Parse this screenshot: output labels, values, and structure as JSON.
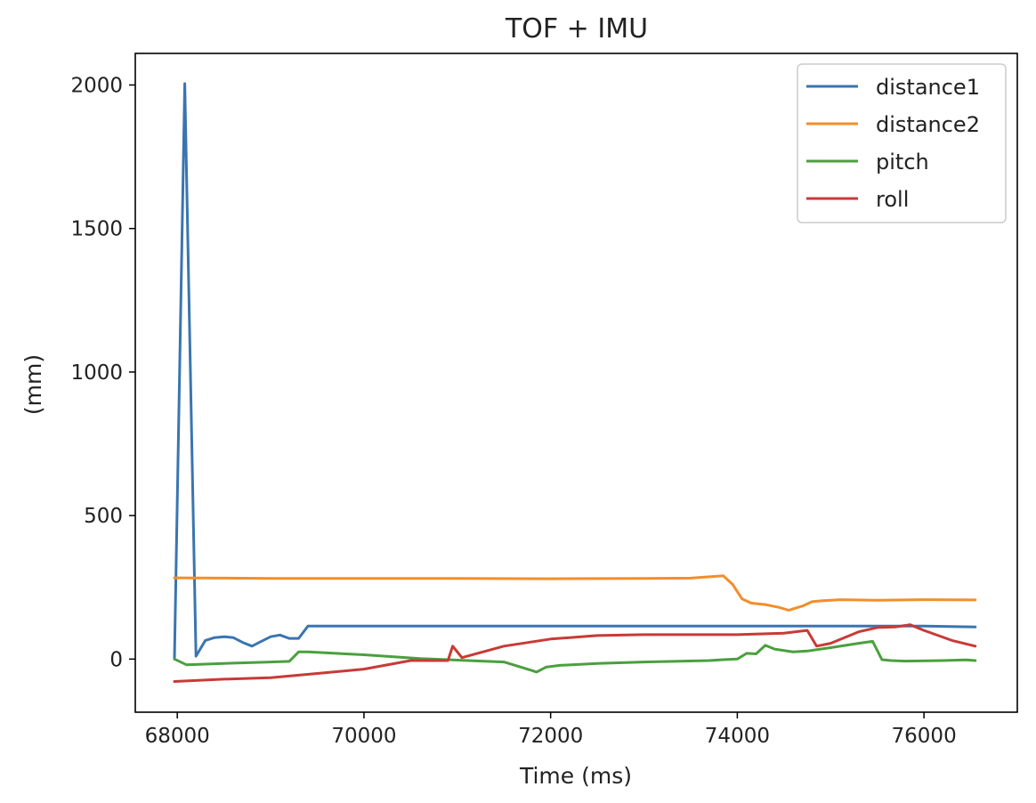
{
  "chart_data": {
    "type": "line",
    "title": "TOF + IMU",
    "xlabel": "Time (ms)",
    "ylabel": "(mm)",
    "xlim": [
      67550,
      77000
    ],
    "ylim": [
      -185,
      2110
    ],
    "xticks": [
      68000,
      70000,
      72000,
      74000,
      76000
    ],
    "yticks": [
      0,
      500,
      1000,
      1500,
      2000
    ],
    "legend_position": "top-right",
    "grid": false,
    "series": [
      {
        "name": "distance1",
        "color": "#3a75b0",
        "x": [
          67970,
          68080,
          68200,
          68300,
          68400,
          68500,
          68600,
          68700,
          68800,
          68900,
          69000,
          69100,
          69200,
          69300,
          69400,
          70000,
          71000,
          72000,
          73000,
          74000,
          75000,
          76000,
          76550
        ],
        "y": [
          0,
          2005,
          10,
          65,
          75,
          78,
          75,
          58,
          45,
          62,
          78,
          84,
          72,
          72,
          115,
          115,
          115,
          115,
          115,
          115,
          115,
          115,
          112
        ]
      },
      {
        "name": "distance2",
        "color": "#f28e2b",
        "x": [
          67970,
          68500,
          69000,
          70000,
          71000,
          72000,
          73000,
          73500,
          73850,
          73950,
          74050,
          74150,
          74300,
          74450,
          74550,
          74700,
          74800,
          74900,
          75100,
          75500,
          76000,
          76550
        ],
        "y": [
          283,
          282,
          281,
          281,
          281,
          280,
          281,
          282,
          290,
          260,
          210,
          195,
          190,
          180,
          170,
          185,
          200,
          203,
          207,
          205,
          207,
          206
        ]
      },
      {
        "name": "pitch",
        "color": "#4aa03e",
        "x": [
          67970,
          68100,
          68500,
          69000,
          69200,
          69300,
          69400,
          70000,
          70600,
          71500,
          71800,
          71850,
          71950,
          72100,
          72500,
          73000,
          73700,
          73850,
          74000,
          74100,
          74200,
          74300,
          74400,
          74600,
          74750,
          75000,
          75300,
          75450,
          75550,
          75650,
          75800,
          76200,
          76450,
          76550
        ],
        "y": [
          0,
          -20,
          -15,
          -10,
          -8,
          25,
          25,
          15,
          2,
          -10,
          -40,
          -45,
          -28,
          -22,
          -15,
          -10,
          -5,
          -2,
          0,
          20,
          18,
          48,
          35,
          25,
          28,
          40,
          55,
          62,
          -2,
          -5,
          -7,
          -5,
          -3,
          -5
        ]
      },
      {
        "name": "roll",
        "color": "#c83a36",
        "x": [
          67970,
          68500,
          69000,
          69500,
          70000,
          70500,
          70900,
          70950,
          71050,
          71500,
          72000,
          72500,
          73000,
          74000,
          74500,
          74750,
          74850,
          75000,
          75300,
          75500,
          75700,
          75850,
          76000,
          76300,
          76550
        ],
        "y": [
          -78,
          -70,
          -65,
          -50,
          -35,
          -5,
          -5,
          45,
          5,
          45,
          70,
          82,
          85,
          85,
          90,
          100,
          45,
          55,
          95,
          110,
          112,
          120,
          100,
          65,
          45
        ]
      }
    ]
  }
}
